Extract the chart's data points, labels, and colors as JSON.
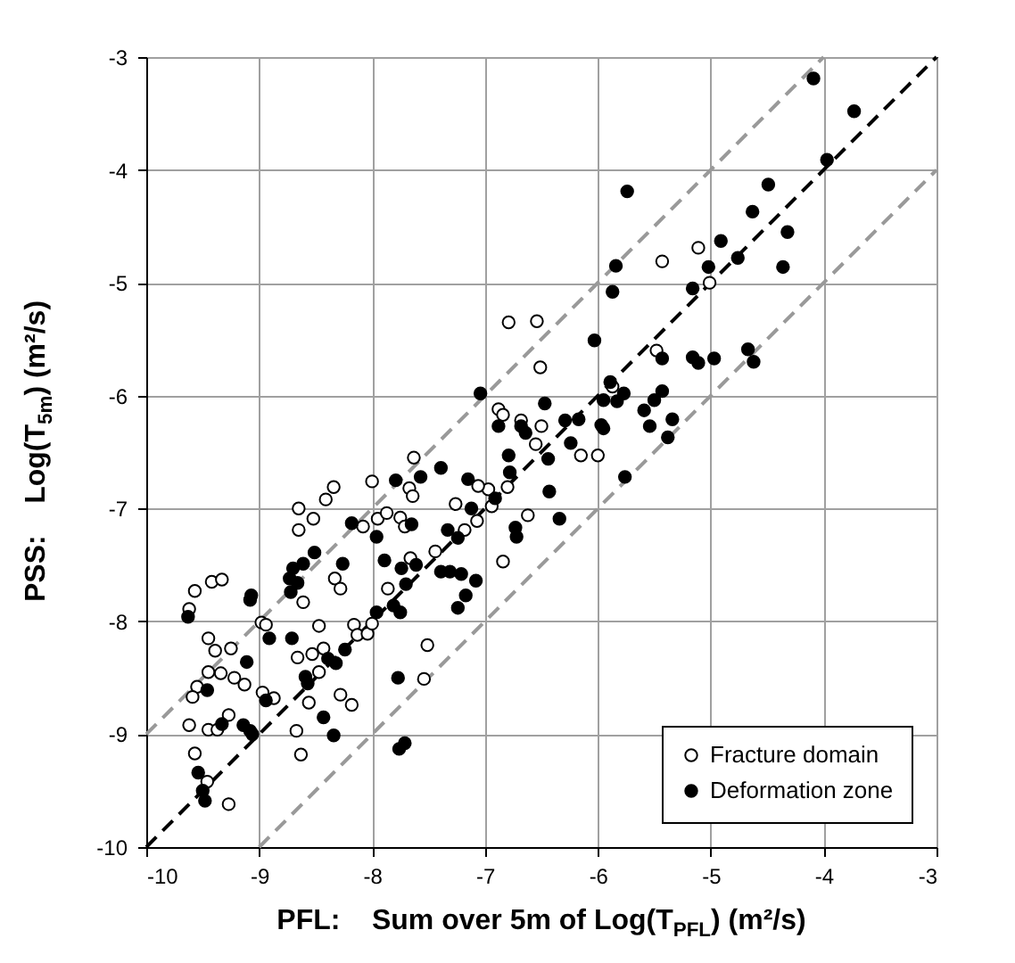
{
  "chart_data": {
    "type": "scatter",
    "xlabel": "PFL:    Sum over 5m of Log(T$_{PFL}$) (m²/s)",
    "ylabel": "PSS:    Log(T$_{5m}$) (m²/s)",
    "xlim": [
      -10,
      -3
    ],
    "ylim": [
      -10,
      -3
    ],
    "xticks": [
      -10,
      -9,
      -8,
      -7,
      -6,
      -5,
      -4,
      -3
    ],
    "yticks": [
      -10,
      -9,
      -8,
      -7,
      -6,
      -5,
      -4,
      -3
    ],
    "grid": true,
    "legend": "bottom right",
    "series": [
      {
        "type": "line",
        "color": "#000000",
        "line_style": "dashed",
        "marker": "none",
        "x": [
          -10,
          -3
        ],
        "values": [
          -10,
          -3
        ]
      },
      {
        "type": "line",
        "color": "#999999",
        "line_style": "dashed",
        "marker": "none",
        "x": [
          -10,
          -4
        ],
        "values": [
          -9,
          -3
        ]
      },
      {
        "type": "line",
        "color": "#999999",
        "line_style": "dashed",
        "marker": "none",
        "x": [
          -9,
          -3
        ],
        "values": [
          -10,
          -4
        ]
      },
      {
        "name": "Fracture domain",
        "color": "#ffffff",
        "marker": "circle",
        "x": [
          -7.63,
          -8.34,
          -7.67,
          -7.64,
          -8.0,
          -8.41,
          -8.65,
          -8.52,
          -8.65,
          -8.08,
          -7.95,
          -7.87,
          -7.75,
          -7.71,
          -7.44,
          -7.66,
          -8.61,
          -8.33,
          -8.28,
          -7.86,
          -9.57,
          -9.42,
          -9.33,
          -9.62,
          -8.98,
          -8.94,
          -8.47,
          -8.16,
          -8.13,
          -8.04,
          -8.0,
          -9.45,
          -9.39,
          -9.25,
          -7.51,
          -8.66,
          -8.53,
          -8.43,
          -8.47,
          -9.45,
          -9.34,
          -9.22,
          -9.13,
          -9.55,
          -9.59,
          -7.54,
          -8.97,
          -8.87,
          -8.56,
          -8.28,
          -8.18,
          -9.27,
          -9.62,
          -9.45,
          -9.37,
          -8.67,
          -8.63,
          -9.57,
          -9.46,
          -9.27,
          -6.79,
          -6.54,
          -6.51,
          -5.87,
          -6.88,
          -6.84,
          -6.68,
          -6.5,
          -6.55,
          -6.15,
          -6.0,
          -6.62,
          -6.94,
          -6.8,
          -6.97,
          -7.06,
          -7.26,
          -7.07,
          -7.18,
          -6.84,
          -5.11,
          -5.43,
          -5.01,
          -5.48
        ],
        "values": [
          -6.55,
          -6.81,
          -6.82,
          -6.89,
          -6.76,
          -6.92,
          -7.0,
          -7.09,
          -7.19,
          -7.16,
          -7.09,
          -7.04,
          -7.08,
          -7.16,
          -7.38,
          -7.44,
          -7.83,
          -7.62,
          -7.71,
          -7.71,
          -7.73,
          -7.65,
          -7.63,
          -7.89,
          -8.01,
          -8.03,
          -8.04,
          -8.03,
          -8.12,
          -8.11,
          -8.02,
          -8.15,
          -8.26,
          -8.24,
          -8.21,
          -8.32,
          -8.29,
          -8.24,
          -8.45,
          -8.45,
          -8.46,
          -8.5,
          -8.56,
          -8.58,
          -8.67,
          -8.51,
          -8.63,
          -8.68,
          -8.72,
          -8.65,
          -8.74,
          -8.83,
          -8.92,
          -8.96,
          -8.96,
          -8.97,
          -9.18,
          -9.17,
          -9.42,
          -9.62,
          -5.35,
          -5.34,
          -5.75,
          -5.92,
          -6.12,
          -6.17,
          -6.22,
          -6.27,
          -6.43,
          -6.53,
          -6.53,
          -7.06,
          -6.98,
          -6.81,
          -6.83,
          -6.8,
          -6.96,
          -7.11,
          -7.19,
          -7.47,
          -4.69,
          -4.81,
          -5.0,
          -5.6
        ]
      },
      {
        "name": "Deformation zone",
        "color": "#000000",
        "marker": "circle",
        "x": [
          -7.79,
          -7.57,
          -7.39,
          -8.18,
          -7.96,
          -7.65,
          -7.39,
          -8.51,
          -8.61,
          -8.7,
          -8.73,
          -8.66,
          -8.72,
          -8.26,
          -7.89,
          -7.74,
          -7.61,
          -7.7,
          -7.81,
          -7.75,
          -7.96,
          -9.63,
          -9.07,
          -9.08,
          -8.91,
          -8.71,
          -8.24,
          -9.11,
          -8.39,
          -8.32,
          -8.59,
          -8.57,
          -9.46,
          -7.77,
          -8.94,
          -8.43,
          -8.34,
          -9.33,
          -9.14,
          -9.08,
          -9.06,
          -7.76,
          -7.71,
          -9.54,
          -9.5,
          -9.48,
          -5.84,
          -5.87,
          -6.03,
          -5.89,
          -5.95,
          -5.83,
          -5.77,
          -7.04,
          -6.88,
          -6.47,
          -6.68,
          -6.64,
          -6.29,
          -6.17,
          -5.97,
          -5.95,
          -6.24,
          -6.44,
          -6.79,
          -6.78,
          -5.76,
          -6.43,
          -6.34,
          -6.91,
          -7.15,
          -7.12,
          -7.24,
          -7.33,
          -7.21,
          -7.31,
          -7.08,
          -7.17,
          -7.24,
          -6.73,
          -6.72,
          -4.09,
          -3.73,
          -3.97,
          -5.74,
          -4.49,
          -4.63,
          -4.32,
          -4.91,
          -5.02,
          -4.76,
          -4.36,
          -5.16,
          -5.43,
          -5.16,
          -5.11,
          -4.97,
          -4.67,
          -4.62,
          -5.43,
          -5.5,
          -5.59,
          -5.54,
          -5.34,
          -5.38
        ],
        "values": [
          -6.75,
          -6.72,
          -6.64,
          -7.13,
          -7.25,
          -7.14,
          -7.56,
          -7.39,
          -7.49,
          -7.53,
          -7.62,
          -7.66,
          -7.74,
          -7.49,
          -7.46,
          -7.53,
          -7.5,
          -7.67,
          -7.86,
          -7.92,
          -7.92,
          -7.96,
          -7.77,
          -7.81,
          -8.15,
          -8.15,
          -8.25,
          -8.36,
          -8.33,
          -8.37,
          -8.49,
          -8.55,
          -8.61,
          -8.5,
          -8.7,
          -8.85,
          -9.01,
          -8.91,
          -8.92,
          -8.97,
          -9.0,
          -9.13,
          -9.08,
          -9.34,
          -9.5,
          -9.59,
          -4.85,
          -5.08,
          -5.51,
          -5.88,
          -6.04,
          -6.05,
          -5.98,
          -5.98,
          -6.27,
          -6.07,
          -6.27,
          -6.33,
          -6.22,
          -6.21,
          -6.26,
          -6.29,
          -6.42,
          -6.56,
          -6.53,
          -6.68,
          -6.72,
          -6.85,
          -7.09,
          -6.91,
          -6.74,
          -7.0,
          -7.26,
          -7.19,
          -7.58,
          -7.56,
          -7.64,
          -7.77,
          -7.88,
          -7.17,
          -7.25,
          -3.19,
          -3.48,
          -3.91,
          -4.19,
          -4.13,
          -4.37,
          -4.55,
          -4.63,
          -4.86,
          -4.78,
          -4.86,
          -5.05,
          -5.67,
          -5.66,
          -5.71,
          -5.67,
          -5.59,
          -5.7,
          -5.96,
          -6.04,
          -6.13,
          -6.27,
          -6.21,
          -6.37
        ]
      }
    ]
  }
}
